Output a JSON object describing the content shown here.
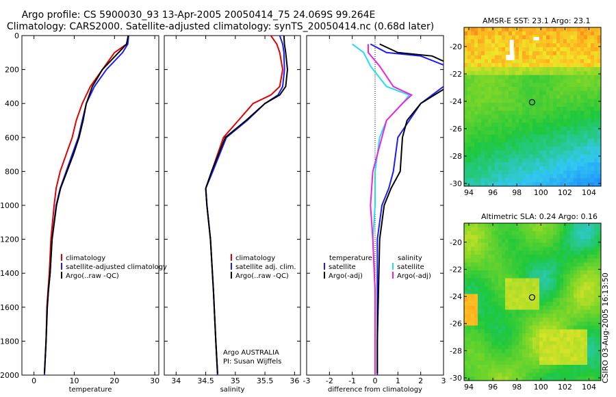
{
  "title_line1": "Argo profile: CS 5900030_93 13-Apr-2005 20050414_75 24.069S 99.264E",
  "title_line2": "Climatology: CARS2000. Satellite-adjusted climatology: synTS_20050414.nc (0.68d later)",
  "stamp": "CSIRO 03-Aug-2005 16:13:50",
  "colors": {
    "climatology": "#e00000",
    "satellite": "#1a1aff",
    "argo": "#000000",
    "sal_sat": "#22ddee",
    "sal_argo": "#ee22dd"
  },
  "chart_data": [
    {
      "type": "line",
      "xlabel": "temperature",
      "xlim": [
        -3,
        31
      ],
      "xticks": [
        0,
        10,
        20,
        30
      ],
      "ylim": [
        2000,
        0
      ],
      "yticks": [
        0,
        200,
        400,
        600,
        800,
        1000,
        1200,
        1400,
        1600,
        1800,
        2000
      ],
      "legend": [
        "climatology",
        "satellite-adjusted climatology",
        "Argo(..raw -QC)"
      ],
      "series": [
        {
          "name": "climatology",
          "color": "#e00000",
          "x": [
            23.5,
            23.0,
            20.0,
            17.0,
            14.0,
            12.0,
            10.5,
            9.5,
            8.0,
            6.5,
            5.5,
            5.0,
            4.2,
            3.8,
            3.5,
            3.2,
            3.0,
            2.8,
            2.6
          ],
          "y": [
            0,
            50,
            100,
            200,
            300,
            400,
            500,
            600,
            700,
            800,
            900,
            1000,
            1200,
            1400,
            1500,
            1600,
            1800,
            1900,
            2000
          ]
        },
        {
          "name": "satellite-adjusted climatology",
          "color": "#1a1aff",
          "x": [
            23.5,
            23.3,
            22.0,
            18.0,
            15.0,
            13.0,
            12.0,
            11.0,
            9.5,
            8.0,
            6.5,
            5.5,
            4.5,
            4.0,
            3.6,
            3.3,
            3.0,
            2.8,
            2.6
          ],
          "y": [
            0,
            50,
            100,
            200,
            300,
            400,
            500,
            600,
            700,
            800,
            900,
            1000,
            1200,
            1400,
            1500,
            1600,
            1800,
            1900,
            2000
          ]
        },
        {
          "name": "Argo(..raw -QC)",
          "color": "#000000",
          "x": [
            23.4,
            23.0,
            21.0,
            17.0,
            14.5,
            13.0,
            12.2,
            11.2,
            9.8,
            8.2,
            6.6,
            5.6,
            4.5,
            4.0,
            3.6,
            3.3,
            3.0,
            2.8,
            2.6
          ],
          "y": [
            0,
            50,
            100,
            200,
            300,
            400,
            500,
            600,
            700,
            800,
            900,
            1000,
            1200,
            1400,
            1500,
            1600,
            1800,
            1900,
            1990
          ]
        }
      ]
    },
    {
      "type": "line",
      "xlabel": "salinity",
      "xlim": [
        33.8,
        36.1
      ],
      "xticks": [
        34,
        34.5,
        35,
        35.5,
        36
      ],
      "ylim": [
        2000,
        0
      ],
      "legend": [
        "climatology",
        "satellite adj. clim.",
        "Argo(..raw -QC)"
      ],
      "annotations": [
        "Argo AUSTRALIA",
        "PI: Susan Wijffels"
      ],
      "series": [
        {
          "name": "climatology",
          "color": "#e00000",
          "x": [
            35.6,
            35.7,
            35.75,
            35.8,
            35.75,
            35.6,
            35.3,
            35.05,
            34.8,
            34.6,
            34.5,
            34.52,
            34.58,
            34.63,
            34.67,
            34.7
          ],
          "y": [
            0,
            50,
            100,
            200,
            300,
            350,
            400,
            500,
            600,
            800,
            900,
            1000,
            1200,
            1500,
            1800,
            2000
          ]
        },
        {
          "name": "satellite adj. clim.",
          "color": "#1a1aff",
          "x": [
            35.75,
            35.8,
            35.82,
            35.83,
            35.8,
            35.72,
            35.5,
            35.2,
            34.85,
            34.62,
            34.5,
            34.52,
            34.58,
            34.63,
            34.67,
            34.7
          ],
          "y": [
            0,
            50,
            100,
            200,
            300,
            350,
            400,
            500,
            600,
            800,
            900,
            1000,
            1200,
            1500,
            1800,
            2000
          ]
        },
        {
          "name": "Argo(..raw -QC)",
          "color": "#000000",
          "x": [
            35.82,
            35.83,
            35.85,
            35.88,
            35.85,
            35.75,
            35.5,
            35.18,
            34.83,
            34.6,
            34.5,
            34.52,
            34.58,
            34.63,
            34.67,
            34.7
          ],
          "y": [
            0,
            50,
            100,
            200,
            300,
            350,
            400,
            500,
            600,
            800,
            900,
            1000,
            1200,
            1500,
            1800,
            1990
          ]
        }
      ]
    },
    {
      "type": "line",
      "xlabel": "difference from climatology",
      "xlim": [
        -3,
        3
      ],
      "xticks": [
        -3,
        -2,
        -1,
        0,
        1,
        2,
        3
      ],
      "ylim": [
        2000,
        0
      ],
      "legend_left_heading": "temperature",
      "legend_left": [
        "satellite",
        "Argo(-adj)"
      ],
      "legend_right_heading": "salinity",
      "legend_right": [
        "satellite",
        "Argo(-adj)"
      ],
      "series": [
        {
          "name": "temperature satellite",
          "color": "#1a1aff",
          "x": [
            -0.2,
            0.5,
            2.0,
            3.5,
            3.0,
            2.0,
            1.5,
            1.0,
            0.8,
            0.6,
            0.3,
            0.1,
            0.1,
            0.1,
            0.1
          ],
          "y": [
            50,
            100,
            120,
            200,
            300,
            400,
            500,
            600,
            800,
            900,
            1000,
            1200,
            1500,
            1800,
            2000
          ]
        },
        {
          "name": "temperature Argo(-adj)",
          "color": "#000000",
          "x": [
            0.2,
            1.0,
            2.5,
            3.8,
            3.2,
            2.0,
            1.4,
            1.2,
            1.1,
            0.7,
            0.4,
            0.2,
            0.15,
            0.1,
            0.1
          ],
          "y": [
            50,
            100,
            120,
            200,
            300,
            400,
            500,
            600,
            800,
            900,
            1000,
            1200,
            1500,
            1800,
            1990
          ]
        },
        {
          "name": "salinity satellite",
          "color": "#22ddee",
          "x": [
            -1.0,
            -0.5,
            -0.2,
            0.5,
            1.5,
            1.2,
            0.5,
            0.2,
            0.0,
            0.0,
            -0.1,
            0.0,
            0.0
          ],
          "y": [
            50,
            100,
            180,
            300,
            350,
            400,
            500,
            600,
            800,
            1000,
            1200,
            1500,
            2000
          ]
        },
        {
          "name": "salinity Argo(-adj)",
          "color": "#ee22dd",
          "x": [
            -0.3,
            -0.3,
            0.2,
            0.8,
            1.6,
            1.2,
            0.5,
            0.3,
            -0.1,
            -0.2,
            -0.1,
            0.0,
            0.0
          ],
          "y": [
            50,
            100,
            180,
            300,
            350,
            400,
            500,
            600,
            800,
            1000,
            1200,
            1500,
            2000
          ]
        }
      ]
    },
    {
      "type": "heatmap",
      "title": "AMSR-E SST: 23.1 Argo: 23.1",
      "xlim": [
        93.6,
        105
      ],
      "ylim": [
        -30.2,
        -18.6
      ],
      "xticks": [
        94,
        96,
        98,
        100,
        102,
        104
      ],
      "yticks": [
        -20,
        -22,
        -24,
        -26,
        -28,
        -30
      ],
      "marker": {
        "lon": 99.264,
        "lat": -24.069
      }
    },
    {
      "type": "heatmap",
      "title": "Altimetric SLA: 0.24 Argo: 0.16",
      "xlim": [
        93.6,
        105
      ],
      "ylim": [
        -30.2,
        -18.6
      ],
      "xticks": [
        94,
        96,
        98,
        100,
        102,
        104
      ],
      "yticks": [
        -20,
        -22,
        -24,
        -26,
        -28,
        -30
      ],
      "marker": {
        "lon": 99.264,
        "lat": -24.069
      }
    }
  ]
}
